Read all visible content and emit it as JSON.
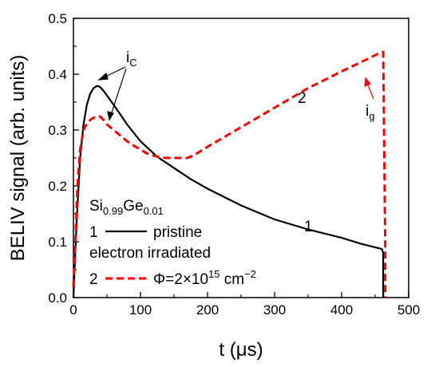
{
  "chart_data": {
    "type": "line",
    "xlabel": "t (μs)",
    "ylabel": "BELIV signal (arb. units)",
    "xlim": [
      0,
      500
    ],
    "ylim": [
      0.0,
      0.5
    ],
    "xticks": [
      "0",
      "100",
      "200",
      "300",
      "400",
      "500"
    ],
    "yticks": [
      "0.0",
      "0.1",
      "0.2",
      "0.3",
      "0.4",
      "0.5"
    ],
    "grid": false,
    "series": [
      {
        "name": "1",
        "color": "#000000",
        "style": "solid",
        "x": [
          0,
          2,
          5,
          10,
          15,
          20,
          25,
          30,
          35,
          40,
          45,
          50,
          60,
          70,
          80,
          90,
          100,
          125,
          150,
          175,
          200,
          250,
          300,
          350,
          400,
          430,
          460,
          462,
          462
        ],
        "y": [
          0.0,
          0.06,
          0.14,
          0.25,
          0.31,
          0.345,
          0.365,
          0.375,
          0.379,
          0.377,
          0.37,
          0.362,
          0.345,
          0.328,
          0.31,
          0.295,
          0.28,
          0.252,
          0.232,
          0.212,
          0.195,
          0.165,
          0.14,
          0.122,
          0.107,
          0.096,
          0.087,
          0.08,
          0.0
        ]
      },
      {
        "name": "2",
        "color": "#ff0000",
        "style": "dashed",
        "x": [
          0,
          3,
          6,
          10,
          15,
          20,
          25,
          30,
          35,
          40,
          45,
          50,
          60,
          70,
          80,
          90,
          100,
          110,
          120,
          130,
          140,
          150,
          160,
          170,
          180,
          200,
          250,
          300,
          350,
          400,
          440,
          455,
          462,
          465,
          465
        ],
        "y": [
          0.02,
          0.1,
          0.2,
          0.265,
          0.3,
          0.312,
          0.318,
          0.322,
          0.325,
          0.324,
          0.318,
          0.31,
          0.3,
          0.29,
          0.28,
          0.272,
          0.265,
          0.258,
          0.254,
          0.251,
          0.25,
          0.25,
          0.25,
          0.25,
          0.255,
          0.27,
          0.305,
          0.34,
          0.375,
          0.405,
          0.428,
          0.437,
          0.44,
          0.1,
          0.0
        ]
      }
    ],
    "annotations": {
      "ic_label": "i",
      "ic_sub": "C",
      "ig_label": "i",
      "ig_sub": "g",
      "curve1_label": "1",
      "curve2_label": "2",
      "material": "Si",
      "material_sub1": "0.99",
      "material_mid": "Ge",
      "material_sub2": "0.01",
      "legend1_num": "1",
      "legend1_text": "pristine",
      "legend_irr": "electron irradiated",
      "legend2_num": "2",
      "legend2_phi": "Φ=2×10",
      "legend2_exp": "15",
      "legend2_unit": " cm",
      "legend2_unit_exp": "−2"
    }
  }
}
